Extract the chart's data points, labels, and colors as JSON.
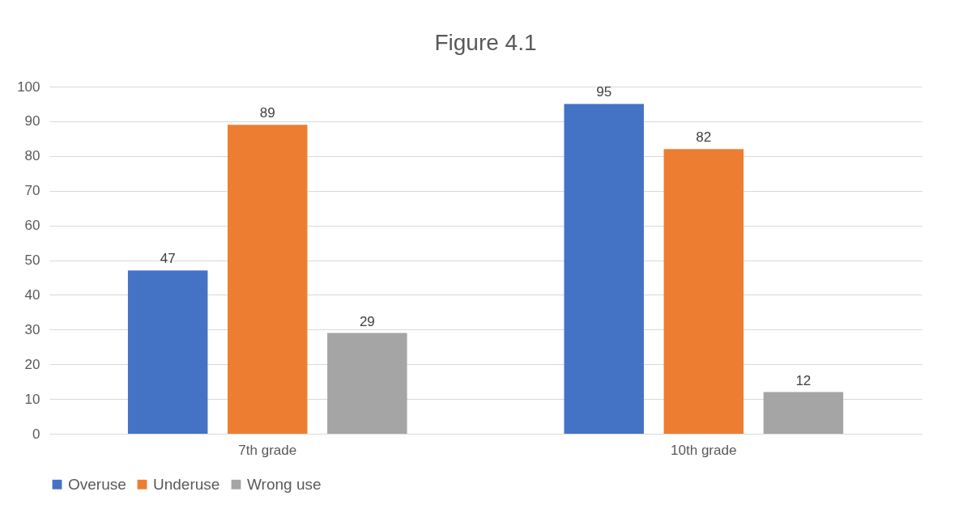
{
  "chart_data": {
    "type": "bar",
    "title": "Figure 4.1",
    "categories": [
      "7th grade",
      "10th grade"
    ],
    "series": [
      {
        "name": "Overuse",
        "color": "#4472c4",
        "values": [
          47,
          95
        ]
      },
      {
        "name": "Underuse",
        "color": "#ed7d31",
        "values": [
          89,
          82
        ]
      },
      {
        "name": "Wrong use",
        "color": "#a5a5a5",
        "values": [
          29,
          12
        ]
      }
    ],
    "ylim": [
      0,
      100
    ],
    "yticks": [
      0,
      10,
      20,
      30,
      40,
      50,
      60,
      70,
      80,
      90,
      100
    ],
    "grid": "y",
    "legend": "bottom",
    "data_labels": true
  }
}
